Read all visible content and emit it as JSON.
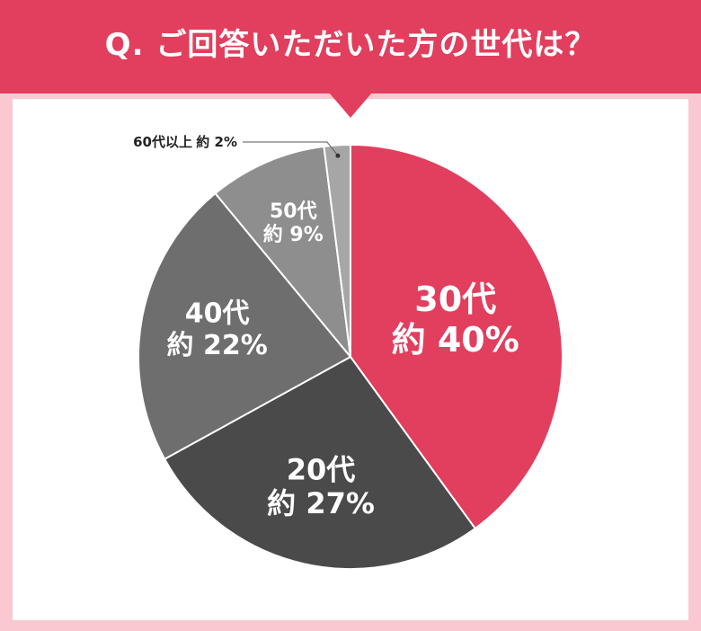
{
  "header": {
    "title": "Q. ご回答いただいた方の世代は？"
  },
  "chart_data": {
    "type": "pie",
    "title": "Q. ご回答いただいた方の世代は？",
    "slices": [
      {
        "category": "30代",
        "value": 40,
        "value_label": "約 40%",
        "color": "#e23e5e"
      },
      {
        "category": "20代",
        "value": 27,
        "value_label": "約 27%",
        "color": "#4a4a4a"
      },
      {
        "category": "40代",
        "value": 22,
        "value_label": "約 22%",
        "color": "#6e6e6e"
      },
      {
        "category": "50代",
        "value": 9,
        "value_label": "約 9%",
        "color": "#8e8e8e"
      },
      {
        "category": "60代以上",
        "value": 2,
        "value_label": "約 2%",
        "color": "#a6a6a6"
      }
    ],
    "start_angle": "12 o'clock",
    "direction": "clockwise",
    "legend": "none"
  },
  "colors": {
    "header": "#e23e5e",
    "background": "#f9c8d1",
    "panel": "#ffffff"
  }
}
